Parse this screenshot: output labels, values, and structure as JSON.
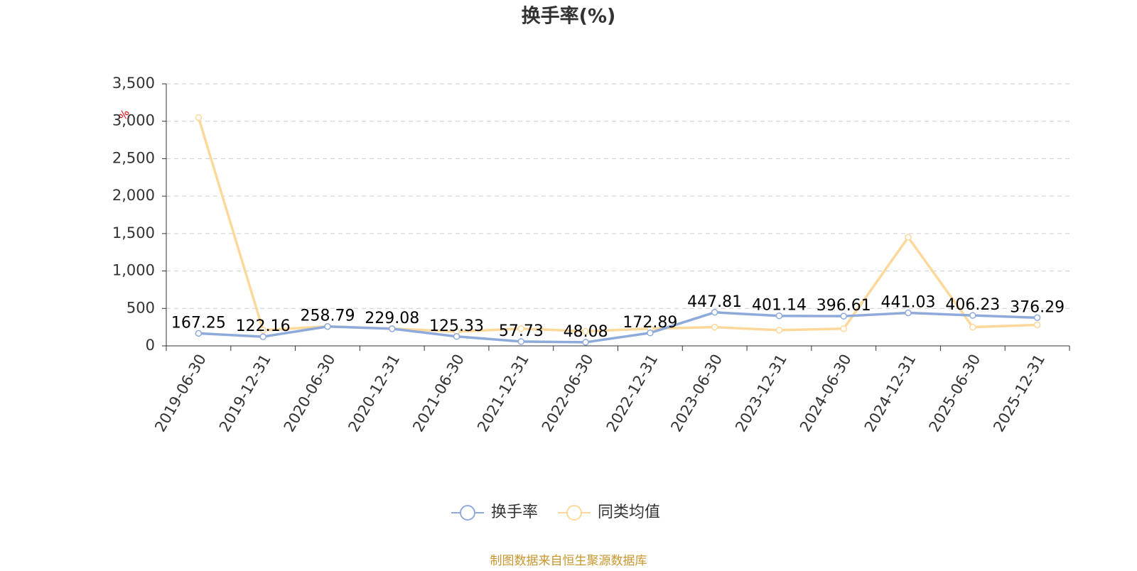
{
  "chart_data": {
    "type": "line",
    "title": "换手率(%)",
    "y_label": "%",
    "categories": [
      "2019-06-30",
      "2019-12-31",
      "2020-06-30",
      "2020-12-31",
      "2021-06-30",
      "2021-12-31",
      "2022-06-30",
      "2022-12-31",
      "2023-06-30",
      "2023-12-31",
      "2024-06-30",
      "2024-12-31",
      "2025-06-30",
      "2025-12-31"
    ],
    "series": [
      {
        "name": "换手率",
        "color": "#8eaadb",
        "data_labels": true,
        "values": [
          167.25,
          122.16,
          258.79,
          229.08,
          125.33,
          57.73,
          48.08,
          172.89,
          447.81,
          401.14,
          396.61,
          441.03,
          406.23,
          376.29
        ]
      },
      {
        "name": "同类均值",
        "color": "#fcd89b",
        "data_labels": false,
        "values": [
          3050,
          210,
          260,
          230,
          190,
          230,
          195,
          230,
          250,
          210,
          230,
          1450,
          250,
          280
        ]
      }
    ],
    "ylim": [
      0,
      3500
    ],
    "yticks": [
      0,
      500,
      {
        "value": 1000,
        "label": "1,000"
      },
      {
        "value": 1500,
        "label": "1,500"
      },
      {
        "value": 2000,
        "label": "2,000"
      },
      {
        "value": 2500,
        "label": "2,500"
      },
      {
        "value": 3000,
        "label": "3,000"
      },
      {
        "value": 3500,
        "label": "3,500"
      }
    ],
    "grid": true,
    "legend": "bottom",
    "source": "制图数据来自恒生聚源数据库"
  }
}
